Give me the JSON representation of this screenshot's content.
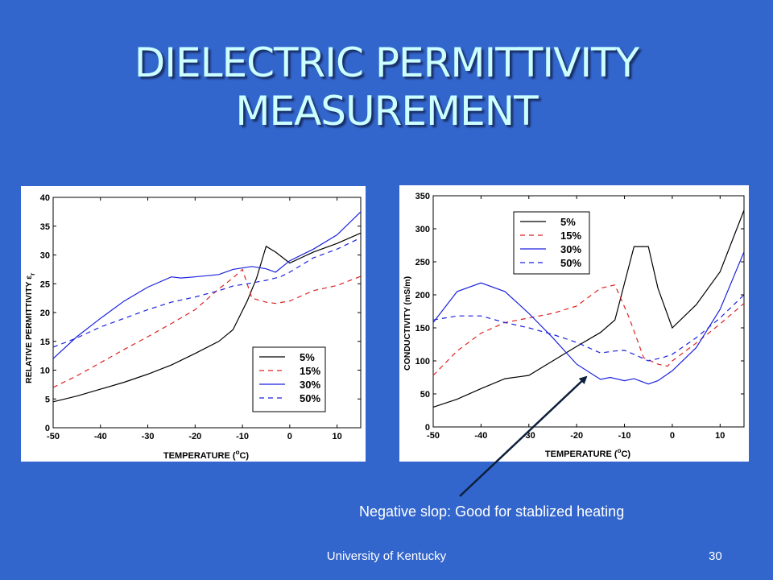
{
  "slide": {
    "title_line1": "DIELECTRIC PERMITTIVITY",
    "title_line2": "MEASUREMENT",
    "note": "Negative slop: Good for stablized heating",
    "footer_left": "University of Kentucky",
    "footer_right": "30"
  },
  "colors": {
    "background": "#3366cc",
    "title": "#ccffff",
    "arrow": "#0d1f3c"
  },
  "chart_data": [
    {
      "type": "line",
      "xlabel": "TEMPERATURE (",
      "xlabel_sup": "o",
      "xlabel_unit": "C)",
      "ylabel": "RELATIVE PERMITTIVITY ε",
      "ylabel_sub": "r",
      "xlim": [
        -50,
        15
      ],
      "ylim": [
        0,
        40
      ],
      "xticks": [
        -50,
        -40,
        -30,
        -20,
        -10,
        0,
        10
      ],
      "yticks": [
        0,
        5,
        10,
        15,
        20,
        25,
        30,
        35,
        40
      ],
      "grid": false,
      "legend": "bottom-right",
      "series": [
        {
          "name": "5%",
          "color": "#000000",
          "dash": "solid",
          "x": [
            -50,
            -45,
            -40,
            -35,
            -30,
            -25,
            -20,
            -15,
            -12,
            -9,
            -7,
            -5,
            -3,
            0,
            5,
            10,
            15
          ],
          "y": [
            4.5,
            5.5,
            6.7,
            7.9,
            9.3,
            10.9,
            12.9,
            15.0,
            17.0,
            22.0,
            26.0,
            31.5,
            30.5,
            28.6,
            30.5,
            32.0,
            33.8
          ]
        },
        {
          "name": "15%",
          "color": "#dd2222",
          "dash": "dashed",
          "x": [
            -50,
            -45,
            -40,
            -35,
            -30,
            -25,
            -20,
            -15,
            -12,
            -10,
            -8,
            -5,
            -3,
            0,
            5,
            10,
            15
          ],
          "y": [
            7.0,
            9.0,
            11.3,
            13.6,
            15.8,
            18.1,
            20.5,
            24.1,
            26.0,
            27.5,
            22.5,
            21.8,
            21.6,
            22.0,
            23.8,
            24.7,
            26.3
          ]
        },
        {
          "name": "30%",
          "color": "#1a22dd",
          "dash": "solid",
          "x": [
            -50,
            -45,
            -40,
            -35,
            -30,
            -25,
            -23,
            -20,
            -15,
            -12,
            -8,
            -5,
            -3,
            0,
            5,
            10,
            15
          ],
          "y": [
            12.0,
            15.8,
            19.0,
            22.0,
            24.4,
            26.2,
            26.0,
            26.2,
            26.6,
            27.5,
            28.0,
            27.6,
            27.0,
            29.0,
            31.0,
            33.5,
            37.5
          ]
        },
        {
          "name": "50%",
          "color": "#1a22dd",
          "dash": "dashed",
          "x": [
            -50,
            -45,
            -40,
            -35,
            -30,
            -25,
            -20,
            -15,
            -12,
            -9,
            -5,
            -2,
            0,
            5,
            10,
            15
          ],
          "y": [
            14.0,
            15.6,
            17.5,
            19.0,
            20.5,
            21.8,
            22.7,
            23.8,
            24.6,
            25.0,
            25.6,
            26.2,
            27.0,
            29.5,
            31.0,
            33.0
          ]
        }
      ]
    },
    {
      "type": "line",
      "xlabel": "TEMPERATURE (",
      "xlabel_sup": "o",
      "xlabel_unit": "C)",
      "ylabel": "CONDUCTIVITY (mS/m)",
      "xlim": [
        -50,
        15
      ],
      "ylim": [
        0,
        350
      ],
      "xticks": [
        -50,
        -40,
        -30,
        -20,
        -10,
        0,
        10
      ],
      "yticks": [
        0,
        50,
        100,
        150,
        200,
        250,
        300,
        350
      ],
      "grid": false,
      "legend": "top-left",
      "series": [
        {
          "name": "5%",
          "color": "#000000",
          "dash": "solid",
          "x": [
            -50,
            -45,
            -40,
            -35,
            -32,
            -30,
            -25,
            -20,
            -15,
            -12,
            -8,
            -5,
            -3,
            0,
            5,
            10,
            15
          ],
          "y": [
            30,
            42,
            58,
            73,
            76,
            78,
            100,
            122,
            143,
            162,
            273,
            273,
            210,
            150,
            185,
            235,
            328
          ]
        },
        {
          "name": "15%",
          "color": "#dd2222",
          "dash": "dashed",
          "x": [
            -50,
            -45,
            -40,
            -35,
            -30,
            -25,
            -20,
            -15,
            -12,
            -9,
            -6,
            -3,
            -1,
            0,
            5,
            10,
            15
          ],
          "y": [
            78,
            115,
            142,
            158,
            165,
            172,
            183,
            210,
            215,
            165,
            105,
            95,
            92,
            100,
            127,
            156,
            187
          ]
        },
        {
          "name": "30%",
          "color": "#1a22dd",
          "dash": "solid",
          "x": [
            -50,
            -45,
            -40,
            -35,
            -30,
            -25,
            -20,
            -15,
            -13,
            -10,
            -8,
            -5,
            -3,
            0,
            5,
            10,
            15
          ],
          "y": [
            158,
            205,
            218,
            205,
            172,
            135,
            95,
            72,
            75,
            70,
            73,
            65,
            70,
            85,
            120,
            178,
            265
          ]
        },
        {
          "name": "50%",
          "color": "#1a22dd",
          "dash": "dashed",
          "x": [
            -50,
            -45,
            -40,
            -35,
            -30,
            -25,
            -20,
            -15,
            -12,
            -10,
            -8,
            -5,
            -2,
            0,
            5,
            10,
            15
          ],
          "y": [
            162,
            168,
            168,
            158,
            150,
            140,
            128,
            112,
            115,
            116,
            110,
            100,
            105,
            110,
            135,
            165,
            200
          ]
        }
      ]
    }
  ]
}
